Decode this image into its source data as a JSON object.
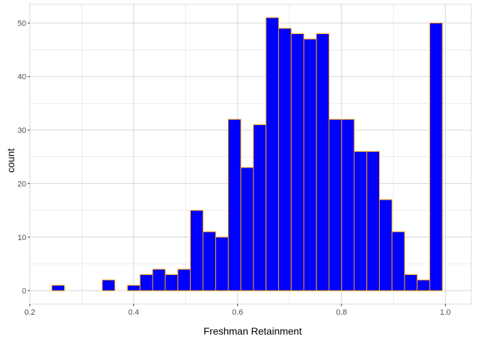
{
  "chart_data": {
    "type": "bar",
    "subtype": "histogram",
    "xlabel": "Freshman Retainment",
    "ylabel": "count",
    "xlim": [
      0.2,
      1.05
    ],
    "ylim": [
      -2.5,
      53.5
    ],
    "x_ticks": [
      0.2,
      0.4,
      0.6,
      0.8,
      1.0
    ],
    "x_tick_labels": [
      "0.2",
      "0.4",
      "0.6",
      "0.8",
      "1.0"
    ],
    "y_ticks": [
      0,
      10,
      20,
      30,
      40,
      50
    ],
    "y_tick_labels": [
      "0",
      "10",
      "20",
      "30",
      "40",
      "50"
    ],
    "grid": true,
    "bin_width": 0.02425,
    "bin_starts": [
      0.2425,
      0.26675,
      0.291,
      0.31525,
      0.3395,
      0.36375,
      0.388,
      0.41225,
      0.4365,
      0.46075,
      0.485,
      0.50925,
      0.5335,
      0.55775,
      0.582,
      0.60625,
      0.6305,
      0.65475,
      0.679,
      0.70325,
      0.7275,
      0.75175,
      0.776,
      0.80025,
      0.8245,
      0.84875,
      0.873,
      0.89725,
      0.9215,
      0.94575,
      0.97,
      0.99425
    ],
    "values": [
      1,
      0,
      0,
      0,
      2,
      0,
      1,
      3,
      4,
      3,
      4,
      15,
      11,
      10,
      32,
      23,
      31,
      51,
      49,
      48,
      47,
      48,
      32,
      32,
      26,
      26,
      17,
      11,
      3,
      2,
      50
    ],
    "fill_color": "#0000ff",
    "outline_color": "#ffa500",
    "panel_background": "#ffffff",
    "grid_color": "#d9d9d9",
    "border_color": "#d9d9d9"
  }
}
